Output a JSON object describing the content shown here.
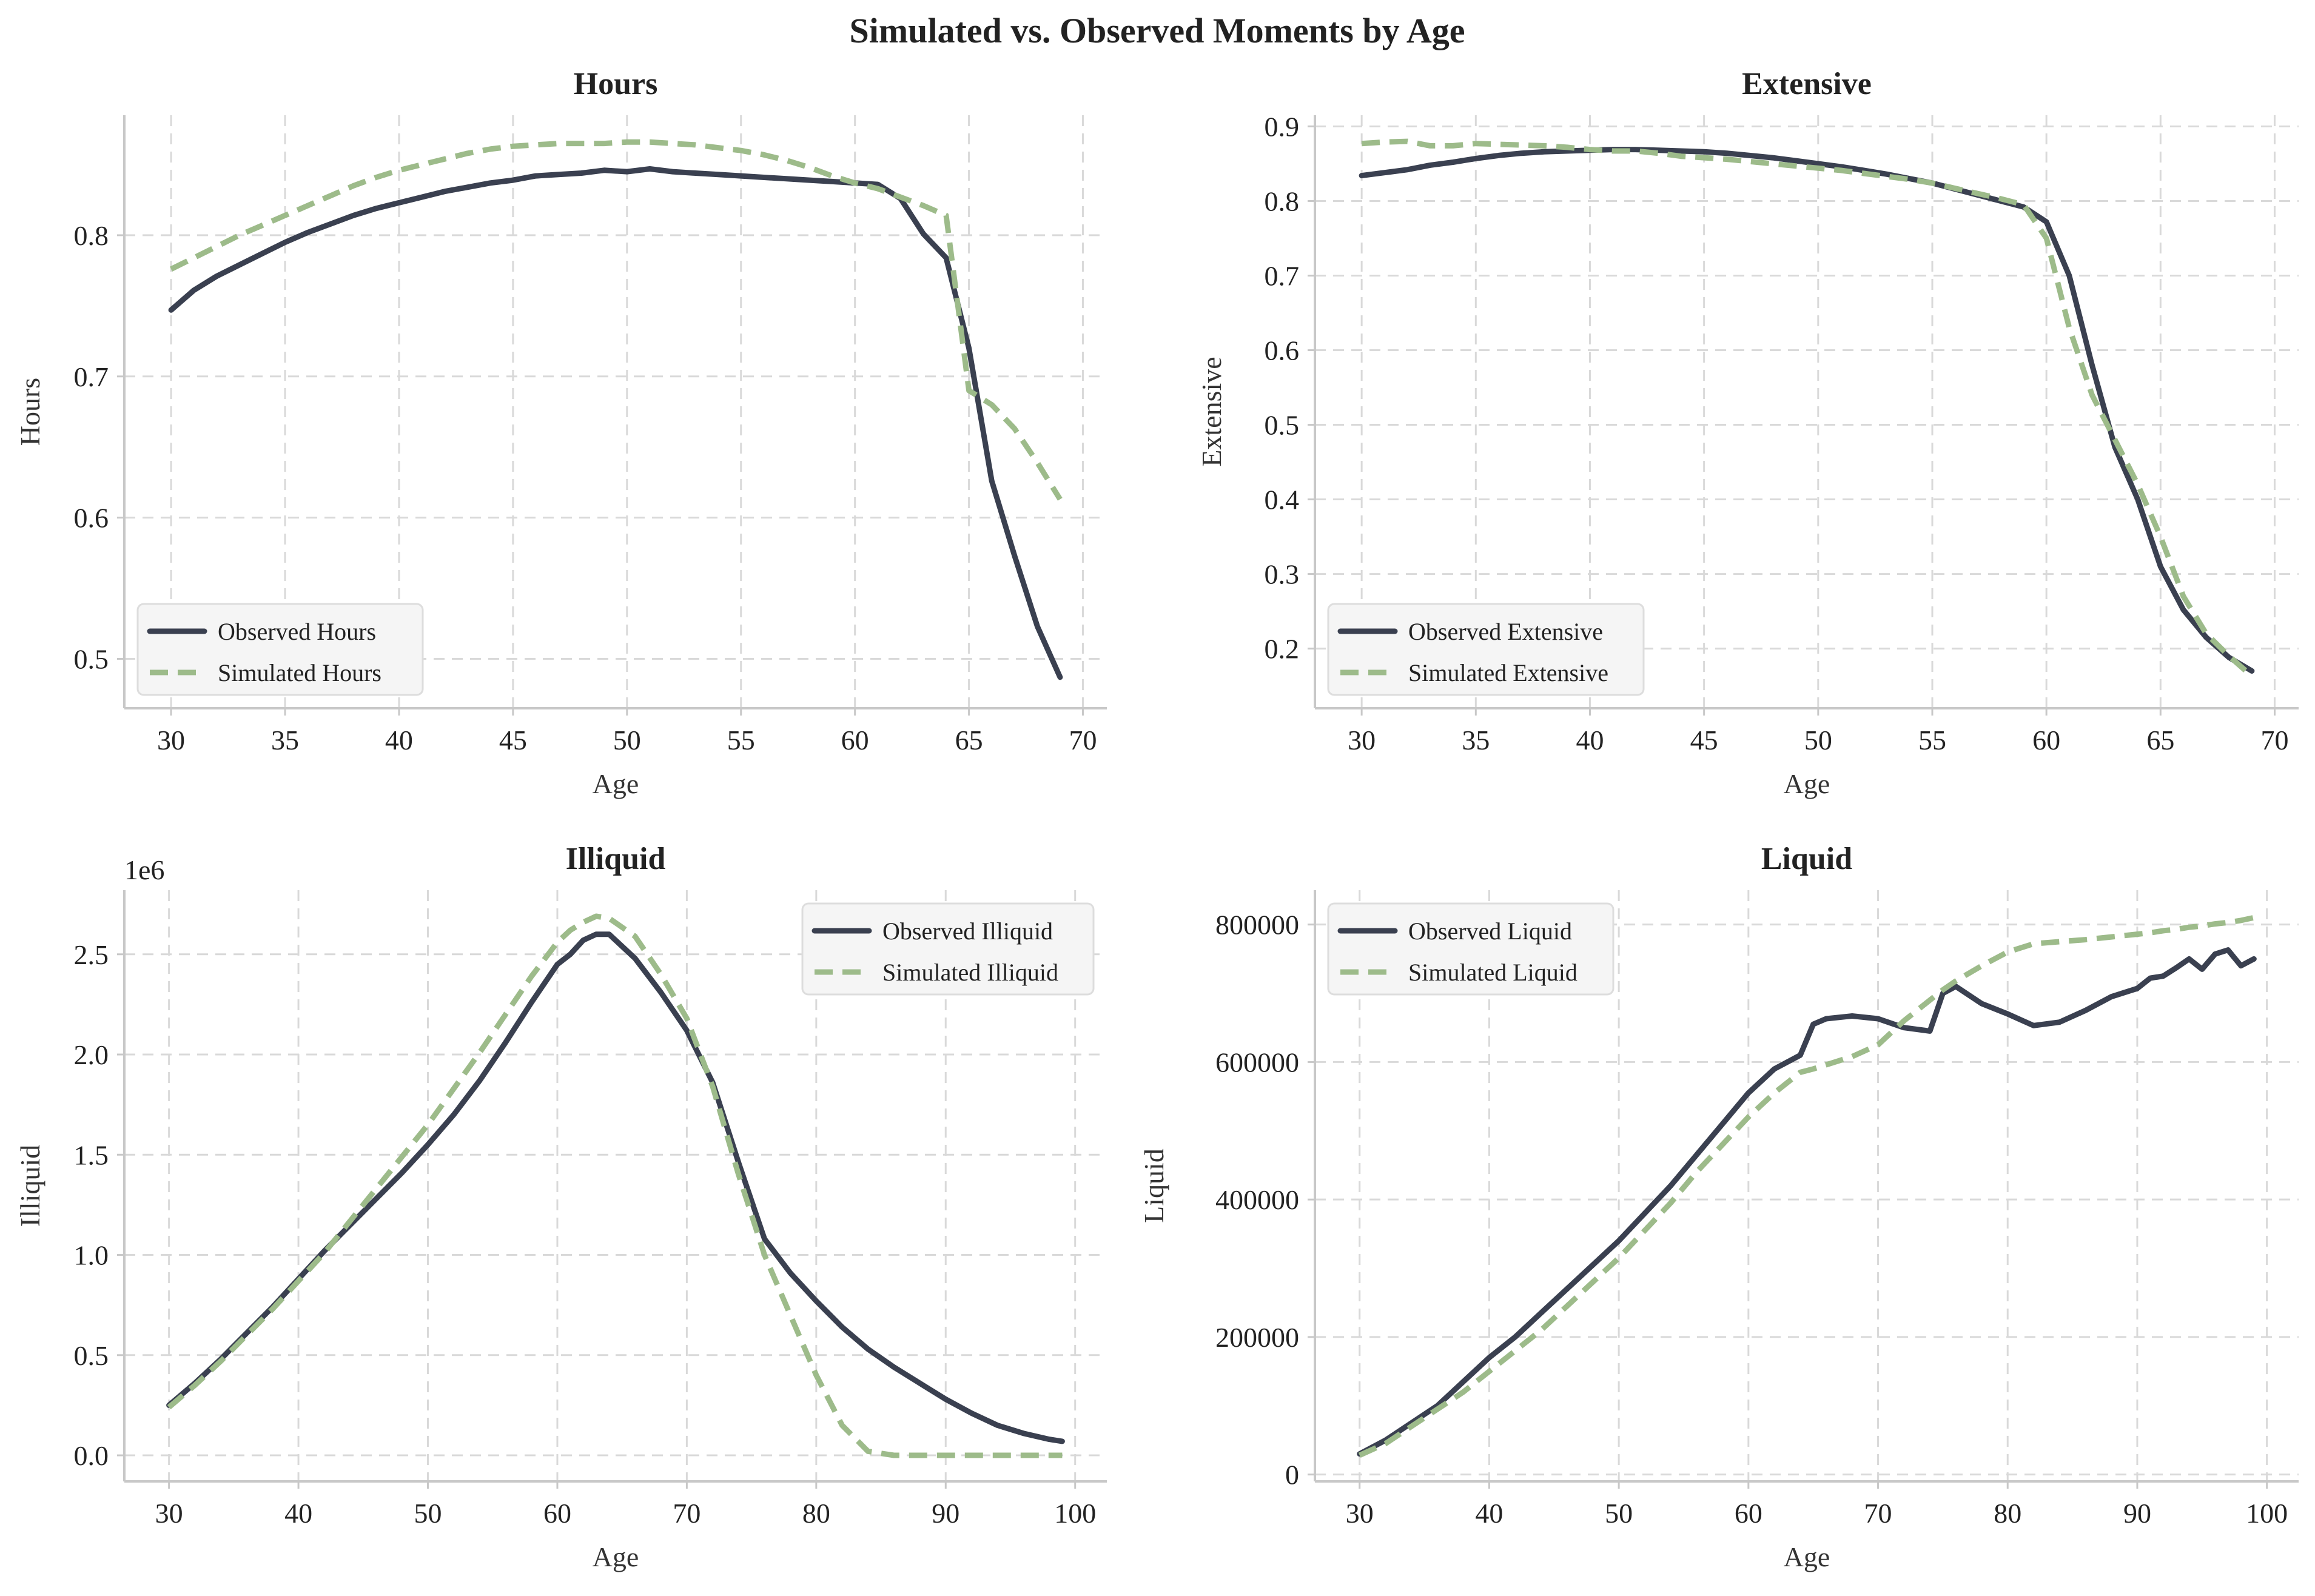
{
  "figure": {
    "title": "Simulated vs. Observed Moments by Age",
    "colors": {
      "observed": "#3a4050",
      "simulated": "#9dbb8a"
    }
  },
  "chart_data": [
    {
      "id": "hours",
      "type": "line",
      "title": "Hours",
      "xlabel": "Age",
      "ylabel": "Hours",
      "xlim": [
        27.95,
        71.05
      ],
      "ylim": [
        0.465,
        0.885
      ],
      "xticks": [
        30,
        35,
        40,
        45,
        50,
        55,
        60,
        65,
        70
      ],
      "yticks": [
        0.5,
        0.6,
        0.7,
        0.8
      ],
      "ytick_labels": [
        "0.5",
        "0.6",
        "0.7",
        "0.8"
      ],
      "offset_text": "",
      "grid": true,
      "legend_position": "lower-left",
      "x": [
        30,
        31,
        32,
        33,
        34,
        35,
        36,
        37,
        38,
        39,
        40,
        41,
        42,
        43,
        44,
        45,
        46,
        47,
        48,
        49,
        50,
        51,
        52,
        53,
        54,
        55,
        56,
        57,
        58,
        59,
        60,
        61,
        62,
        63,
        64,
        65,
        66,
        67,
        68,
        69
      ],
      "series": [
        {
          "name": "Observed Hours",
          "style": "solid",
          "values": [
            0.747,
            0.761,
            0.771,
            0.779,
            0.787,
            0.795,
            0.802,
            0.808,
            0.814,
            0.819,
            0.823,
            0.827,
            0.831,
            0.834,
            0.837,
            0.839,
            0.842,
            0.843,
            0.844,
            0.846,
            0.845,
            0.847,
            0.845,
            0.844,
            0.843,
            0.842,
            0.841,
            0.84,
            0.839,
            0.838,
            0.837,
            0.836,
            0.826,
            0.801,
            0.784,
            0.72,
            0.626,
            0.573,
            0.523,
            0.487
          ]
        },
        {
          "name": "Simulated Hours",
          "style": "dashed",
          "values": [
            0.776,
            0.784,
            0.792,
            0.8,
            0.807,
            0.814,
            0.821,
            0.828,
            0.835,
            0.841,
            0.846,
            0.85,
            0.854,
            0.858,
            0.861,
            0.863,
            0.864,
            0.865,
            0.865,
            0.865,
            0.866,
            0.866,
            0.865,
            0.864,
            0.862,
            0.86,
            0.857,
            0.853,
            0.848,
            0.842,
            0.837,
            0.833,
            0.827,
            0.821,
            0.814,
            0.69,
            0.68,
            0.663,
            0.639,
            0.613
          ]
        }
      ]
    },
    {
      "id": "extensive",
      "type": "line",
      "title": "Extensive",
      "xlabel": "Age",
      "ylabel": "Extensive",
      "xlim": [
        27.95,
        71.05
      ],
      "ylim": [
        0.12,
        0.915
      ],
      "xticks": [
        30,
        35,
        40,
        45,
        50,
        55,
        60,
        65,
        70
      ],
      "yticks": [
        0.2,
        0.3,
        0.4,
        0.5,
        0.6,
        0.7,
        0.8,
        0.9
      ],
      "ytick_labels": [
        "0.2",
        "0.3",
        "0.4",
        "0.5",
        "0.6",
        "0.7",
        "0.8",
        "0.9"
      ],
      "offset_text": "",
      "grid": true,
      "legend_position": "lower-left",
      "x": [
        30,
        31,
        32,
        33,
        34,
        35,
        36,
        37,
        38,
        39,
        40,
        41,
        42,
        43,
        44,
        45,
        46,
        47,
        48,
        49,
        50,
        51,
        52,
        53,
        54,
        55,
        56,
        57,
        58,
        59,
        60,
        61,
        62,
        63,
        64,
        65,
        66,
        67,
        68,
        69
      ],
      "series": [
        {
          "name": "Observed Extensive",
          "style": "solid",
          "values": [
            0.834,
            0.838,
            0.842,
            0.848,
            0.852,
            0.857,
            0.861,
            0.864,
            0.866,
            0.867,
            0.868,
            0.869,
            0.869,
            0.868,
            0.867,
            0.866,
            0.864,
            0.861,
            0.858,
            0.854,
            0.85,
            0.846,
            0.841,
            0.836,
            0.83,
            0.824,
            0.816,
            0.808,
            0.8,
            0.792,
            0.772,
            0.7,
            0.58,
            0.47,
            0.4,
            0.31,
            0.252,
            0.215,
            0.188,
            0.17
          ]
        },
        {
          "name": "Simulated Extensive",
          "style": "dashed",
          "values": [
            0.877,
            0.879,
            0.88,
            0.874,
            0.874,
            0.877,
            0.876,
            0.875,
            0.874,
            0.872,
            0.869,
            0.867,
            0.867,
            0.864,
            0.86,
            0.858,
            0.856,
            0.853,
            0.85,
            0.847,
            0.844,
            0.841,
            0.837,
            0.833,
            0.829,
            0.824,
            0.817,
            0.81,
            0.803,
            0.795,
            0.75,
            0.63,
            0.54,
            0.48,
            0.42,
            0.35,
            0.27,
            0.22,
            0.19,
            0.163
          ]
        }
      ]
    },
    {
      "id": "illiquid",
      "type": "line",
      "title": "Illiquid",
      "xlabel": "Age",
      "ylabel": "Illiquid",
      "xlim": [
        26.55,
        102.45
      ],
      "ylim": [
        -0.13,
        2.82
      ],
      "xticks": [
        30,
        40,
        50,
        60,
        70,
        80,
        90,
        100
      ],
      "yticks": [
        0.0,
        0.5,
        1.0,
        1.5,
        2.0,
        2.5
      ],
      "ytick_labels": [
        "0.0",
        "0.5",
        "1.0",
        "1.5",
        "2.0",
        "2.5"
      ],
      "offset_text": "1e6",
      "grid": true,
      "legend_position": "upper-right",
      "x": [
        30,
        32,
        34,
        36,
        38,
        40,
        42,
        44,
        46,
        48,
        50,
        52,
        54,
        56,
        58,
        60,
        61,
        62,
        63,
        64,
        66,
        68,
        70,
        72,
        74,
        76,
        78,
        80,
        82,
        84,
        86,
        88,
        90,
        92,
        94,
        96,
        98,
        99
      ],
      "series": [
        {
          "name": "Observed Illiquid",
          "style": "solid",
          "values": [
            0.25,
            0.36,
            0.48,
            0.61,
            0.74,
            0.88,
            1.02,
            1.15,
            1.28,
            1.41,
            1.55,
            1.7,
            1.87,
            2.06,
            2.26,
            2.45,
            2.5,
            2.57,
            2.6,
            2.6,
            2.48,
            2.31,
            2.12,
            1.86,
            1.46,
            1.08,
            0.91,
            0.77,
            0.64,
            0.53,
            0.44,
            0.36,
            0.28,
            0.21,
            0.15,
            0.11,
            0.08,
            0.07
          ]
        },
        {
          "name": "Simulated Illiquid",
          "style": "dashed",
          "values": [
            0.24,
            0.35,
            0.47,
            0.6,
            0.73,
            0.87,
            1.01,
            1.17,
            1.33,
            1.49,
            1.65,
            1.83,
            2.01,
            2.2,
            2.39,
            2.56,
            2.62,
            2.66,
            2.69,
            2.68,
            2.59,
            2.4,
            2.18,
            1.84,
            1.4,
            1.0,
            0.7,
            0.4,
            0.15,
            0.02,
            0.0,
            0.0,
            0.0,
            0.0,
            0.0,
            0.0,
            0.0,
            0.0
          ]
        }
      ]
    },
    {
      "id": "liquid",
      "type": "line",
      "title": "Liquid",
      "xlabel": "Age",
      "ylabel": "Liquid",
      "xlim": [
        26.55,
        102.45
      ],
      "ylim": [
        -10000,
        850000
      ],
      "xticks": [
        30,
        40,
        50,
        60,
        70,
        80,
        90,
        100
      ],
      "yticks": [
        0,
        200000,
        400000,
        600000,
        800000
      ],
      "ytick_labels": [
        "0",
        "200000",
        "400000",
        "600000",
        "800000"
      ],
      "offset_text": "",
      "grid": true,
      "legend_position": "upper-left",
      "x": [
        30,
        32,
        34,
        36,
        38,
        40,
        42,
        44,
        46,
        48,
        50,
        52,
        54,
        56,
        58,
        60,
        62,
        64,
        65,
        66,
        68,
        70,
        72,
        74,
        75,
        76,
        78,
        80,
        82,
        84,
        86,
        88,
        90,
        91,
        92,
        93,
        94,
        95,
        96,
        97,
        98,
        99
      ],
      "series": [
        {
          "name": "Observed Liquid",
          "style": "solid",
          "values": [
            30000,
            50000,
            75000,
            100000,
            135000,
            170000,
            200000,
            235000,
            270000,
            305000,
            340000,
            380000,
            420000,
            465000,
            510000,
            555000,
            590000,
            610000,
            655000,
            663000,
            667000,
            663000,
            650000,
            645000,
            700000,
            710000,
            685000,
            670000,
            653000,
            658000,
            675000,
            695000,
            707000,
            722000,
            725000,
            737000,
            750000,
            735000,
            757000,
            763000,
            740000,
            750000
          ]
        },
        {
          "name": "Simulated Liquid",
          "style": "dashed",
          "values": [
            28000,
            45000,
            70000,
            95000,
            120000,
            150000,
            180000,
            210000,
            245000,
            280000,
            315000,
            355000,
            395000,
            440000,
            480000,
            520000,
            555000,
            585000,
            590000,
            596000,
            608000,
            625000,
            660000,
            690000,
            705000,
            718000,
            740000,
            760000,
            772000,
            775000,
            778000,
            782000,
            786000,
            788000,
            791000,
            793000,
            796000,
            798000,
            801000,
            803000,
            806000,
            810000
          ]
        }
      ]
    }
  ]
}
